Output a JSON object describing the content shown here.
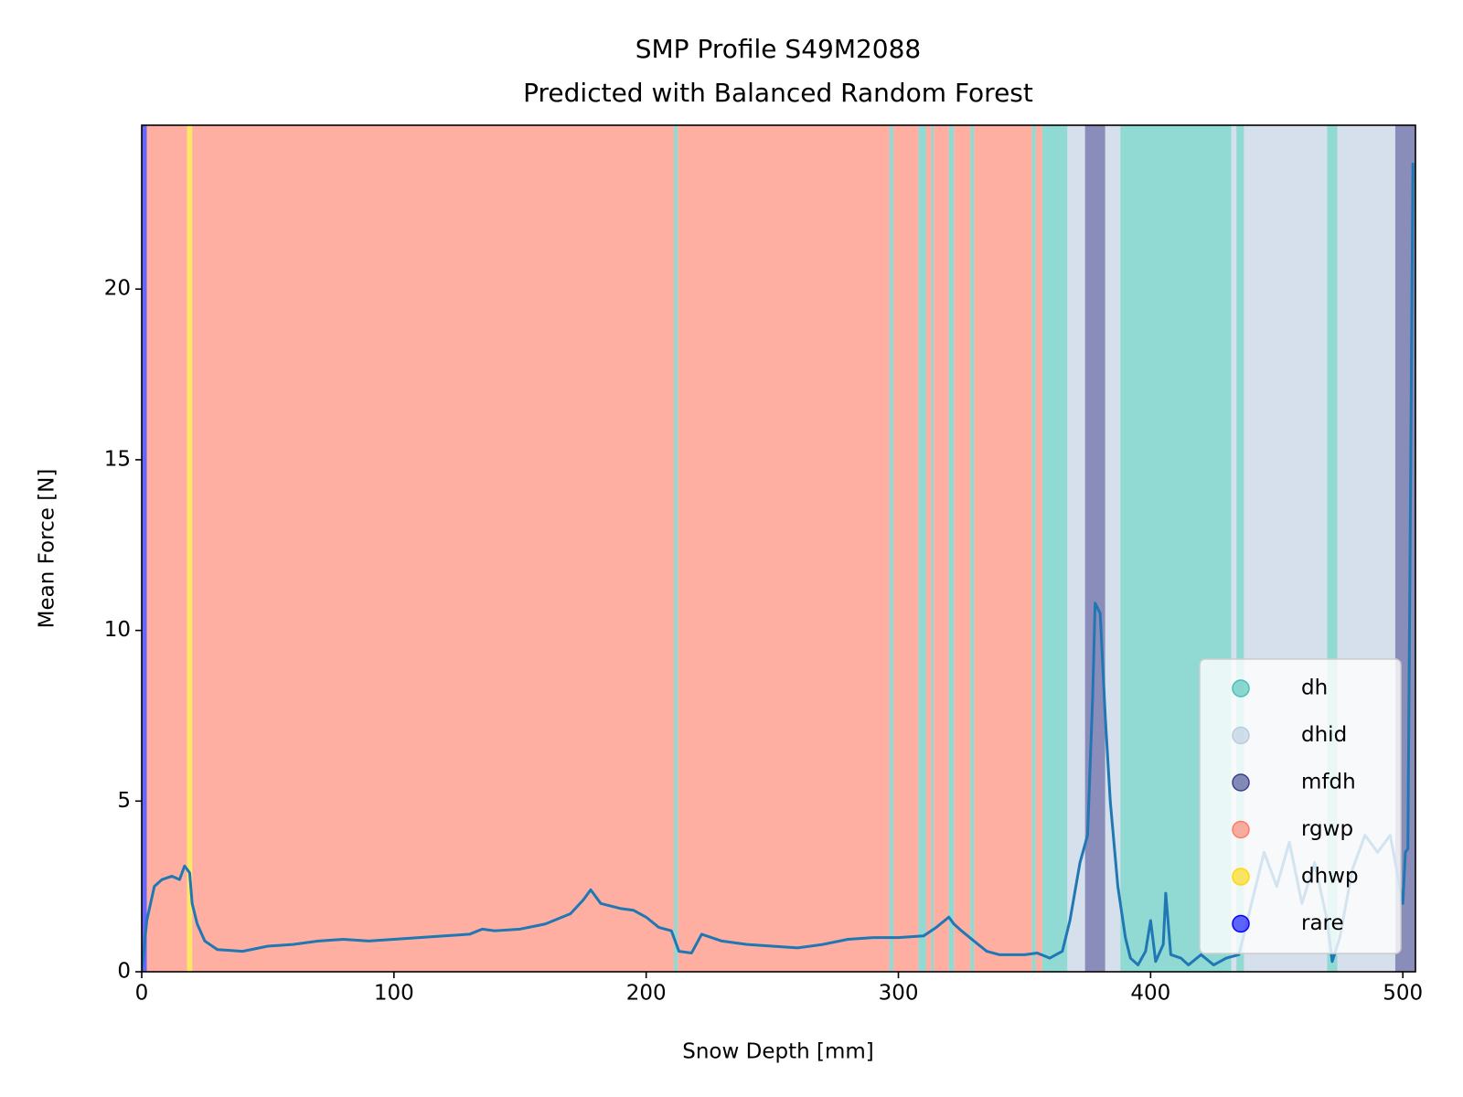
{
  "chart_data": {
    "type": "line",
    "title": "SMP Profile S49M2088",
    "subtitle": "Predicted with Balanced Random Forest",
    "x_label": "Snow Depth [mm]",
    "y_label": "Mean Force [N]",
    "xlim": [
      0,
      505
    ],
    "ylim": [
      0,
      24.8
    ],
    "xticks": [
      0,
      100,
      200,
      300,
      400,
      500
    ],
    "yticks": [
      0,
      5,
      10,
      15,
      20
    ],
    "legend_position": "lower right",
    "line_color": "#1f77b4",
    "classes": [
      {
        "name": "dh",
        "color": "#48c0b6"
      },
      {
        "name": "dhid",
        "color": "#b9cbdf"
      },
      {
        "name": "mfdh",
        "color": "#3c3f8c"
      },
      {
        "name": "rgwp",
        "color": "#ff7a64"
      },
      {
        "name": "dhwp",
        "color": "#ffd700"
      },
      {
        "name": "rare",
        "color": "#0000ff"
      }
    ],
    "segments": [
      {
        "start": 0,
        "end": 2,
        "class": "rare"
      },
      {
        "start": 2,
        "end": 18,
        "class": "rgwp"
      },
      {
        "start": 18,
        "end": 20,
        "class": "dhwp"
      },
      {
        "start": 20,
        "end": 211,
        "class": "rgwp"
      },
      {
        "start": 211,
        "end": 212.5,
        "class": "dh"
      },
      {
        "start": 212.5,
        "end": 296.5,
        "class": "rgwp"
      },
      {
        "start": 296.5,
        "end": 298,
        "class": "dh"
      },
      {
        "start": 298,
        "end": 308,
        "class": "rgwp"
      },
      {
        "start": 308,
        "end": 311,
        "class": "dh"
      },
      {
        "start": 311,
        "end": 313,
        "class": "rgwp"
      },
      {
        "start": 313,
        "end": 314,
        "class": "dh"
      },
      {
        "start": 314,
        "end": 320,
        "class": "rgwp"
      },
      {
        "start": 320,
        "end": 322,
        "class": "dh"
      },
      {
        "start": 322,
        "end": 328.5,
        "class": "rgwp"
      },
      {
        "start": 328.5,
        "end": 330,
        "class": "dh"
      },
      {
        "start": 330,
        "end": 353,
        "class": "rgwp"
      },
      {
        "start": 353,
        "end": 354.5,
        "class": "dh"
      },
      {
        "start": 354.5,
        "end": 357,
        "class": "rgwp"
      },
      {
        "start": 357,
        "end": 367,
        "class": "dh"
      },
      {
        "start": 367,
        "end": 374,
        "class": "dhid"
      },
      {
        "start": 374,
        "end": 382,
        "class": "mfdh"
      },
      {
        "start": 382,
        "end": 388,
        "class": "dhid"
      },
      {
        "start": 388,
        "end": 432,
        "class": "dh"
      },
      {
        "start": 432,
        "end": 434,
        "class": "dhid"
      },
      {
        "start": 434,
        "end": 437,
        "class": "dh"
      },
      {
        "start": 437,
        "end": 470,
        "class": "dhid"
      },
      {
        "start": 470,
        "end": 474,
        "class": "dh"
      },
      {
        "start": 474,
        "end": 497,
        "class": "dhid"
      },
      {
        "start": 497,
        "end": 505,
        "class": "mfdh"
      }
    ],
    "x": [
      0,
      2,
      5,
      8,
      12,
      15,
      17,
      19,
      20,
      22,
      25,
      30,
      40,
      50,
      60,
      70,
      80,
      90,
      100,
      110,
      120,
      130,
      135,
      140,
      150,
      160,
      170,
      175,
      178,
      182,
      190,
      195,
      200,
      205,
      210,
      213,
      218,
      222,
      226,
      230,
      240,
      250,
      260,
      270,
      280,
      290,
      300,
      310,
      315,
      320,
      322,
      325,
      330,
      335,
      340,
      350,
      355,
      360,
      365,
      368,
      372,
      375,
      377,
      378,
      380,
      382,
      384,
      387,
      390,
      392,
      395,
      398,
      400,
      402,
      405,
      406,
      408,
      412,
      415,
      420,
      425,
      430,
      435,
      440,
      445,
      450,
      455,
      460,
      465,
      470,
      472,
      475,
      480,
      485,
      490,
      495,
      500,
      501,
      502,
      504
    ],
    "values": [
      0,
      1.5,
      2.5,
      2.7,
      2.8,
      2.7,
      3.1,
      2.9,
      2.0,
      1.4,
      0.9,
      0.65,
      0.6,
      0.75,
      0.8,
      0.9,
      0.95,
      0.9,
      0.95,
      1.0,
      1.05,
      1.1,
      1.25,
      1.2,
      1.25,
      1.4,
      1.7,
      2.1,
      2.4,
      2.0,
      1.85,
      1.8,
      1.6,
      1.3,
      1.2,
      0.6,
      0.55,
      1.1,
      1.0,
      0.9,
      0.8,
      0.75,
      0.7,
      0.8,
      0.95,
      1.0,
      1.0,
      1.05,
      1.3,
      1.6,
      1.4,
      1.2,
      0.9,
      0.6,
      0.5,
      0.5,
      0.55,
      0.4,
      0.6,
      1.5,
      3.2,
      4.0,
      8.0,
      10.8,
      10.5,
      7.5,
      5.0,
      2.5,
      1.0,
      0.4,
      0.2,
      0.6,
      1.5,
      0.3,
      0.8,
      2.3,
      0.5,
      0.4,
      0.2,
      0.5,
      0.2,
      0.4,
      0.5,
      2.0,
      3.5,
      2.5,
      3.8,
      2.0,
      3.2,
      1.5,
      0.3,
      1.0,
      3.0,
      4.0,
      3.5,
      4.0,
      2.0,
      3.5,
      3.6,
      23.7
    ]
  }
}
